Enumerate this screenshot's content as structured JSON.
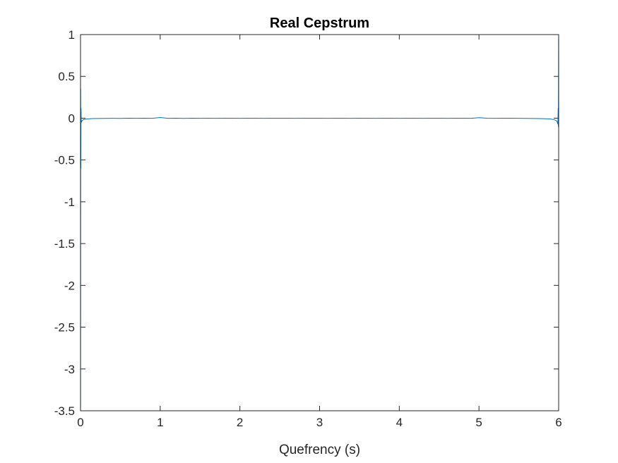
{
  "chart_data": {
    "type": "line",
    "title": "Real Cepstrum",
    "xlabel": "Quefrency (s)",
    "ylabel": "",
    "xlim": [
      0,
      6
    ],
    "ylim": [
      -3.5,
      1
    ],
    "x_ticks": [
      0,
      1,
      2,
      3,
      4,
      5,
      6
    ],
    "x_tick_labels": [
      "0",
      "1",
      "2",
      "3",
      "4",
      "5",
      "6"
    ],
    "y_ticks": [
      1,
      0.5,
      0,
      -0.5,
      -1,
      -1.5,
      -2,
      -2.5,
      -3,
      -3.5
    ],
    "y_tick_labels": [
      "1",
      "0.5",
      "0",
      "-0.5",
      "-1",
      "-1.5",
      "-2",
      "-2.5",
      "-3",
      "-3.5"
    ],
    "grid": false,
    "line_color": "#0072BD",
    "axis_color": "#262626",
    "series": [
      {
        "x": [
          0,
          0.001,
          0.002,
          0.004,
          0.006,
          0.01,
          0.015,
          0.02,
          0.03,
          0.05,
          0.07,
          0.1,
          0.15,
          0.2,
          0.3,
          0.4,
          0.5,
          0.6,
          0.7,
          0.8,
          0.9,
          1.0,
          1.1,
          1.2,
          1.3,
          1.4,
          1.5,
          1.6,
          1.7,
          1.8,
          1.9,
          2.0,
          2.1,
          2.2,
          2.3,
          2.4,
          2.5,
          2.6,
          2.7,
          2.8,
          2.9,
          3.0,
          3.1,
          3.2,
          3.3,
          3.4,
          3.5,
          3.6,
          3.7,
          3.8,
          3.9,
          4.0,
          4.1,
          4.2,
          4.3,
          4.4,
          4.5,
          4.6,
          4.7,
          4.8,
          4.9,
          5.0,
          5.1,
          5.2,
          5.3,
          5.4,
          5.5,
          5.6,
          5.7,
          5.8,
          5.85,
          5.9,
          5.93,
          5.95,
          5.97,
          5.98,
          5.985,
          5.99,
          5.994,
          5.996,
          5.998,
          5.999
        ],
        "values": [
          0.98,
          -3.45,
          0.35,
          -0.6,
          0.12,
          -0.05,
          -0.04,
          -0.03,
          -0.02,
          -0.015,
          -0.01,
          -0.008,
          -0.005,
          -0.004,
          -0.003,
          -0.002,
          -0.003,
          -0.001,
          -0.002,
          0.0,
          -0.002,
          0.008,
          -0.002,
          -0.001,
          -0.003,
          0.0,
          -0.002,
          -0.001,
          -0.002,
          0.0,
          -0.001,
          -0.002,
          0.0,
          -0.001,
          -0.002,
          0.0,
          -0.001,
          0.0,
          -0.002,
          -0.001,
          0.0,
          -0.001,
          -0.002,
          0.0,
          -0.001,
          -0.002,
          0.0,
          -0.001,
          -0.002,
          0.0,
          -0.001,
          -0.002,
          0.0,
          -0.001,
          -0.002,
          0.0,
          -0.001,
          -0.002,
          0.0,
          -0.001,
          -0.002,
          0.006,
          -0.001,
          -0.002,
          0.0,
          -0.001,
          -0.002,
          -0.003,
          -0.004,
          -0.006,
          -0.008,
          -0.01,
          -0.015,
          -0.02,
          -0.03,
          -0.04,
          -0.06,
          -0.07,
          0.12,
          -0.1,
          0.35,
          0.95
        ]
      }
    ]
  }
}
